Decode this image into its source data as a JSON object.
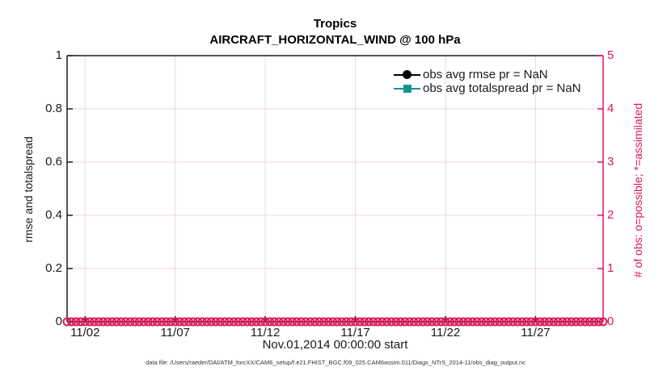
{
  "title": "Tropics",
  "subtitle": "AIRCRAFT_HORIZONTAL_WIND @ 100 hPa",
  "footer_note": "data file: /Users/raeder/DAI/ATM_forcXX/CAM6_setup/f.e21.FHIST_BGC.f09_025.CAM6assim.011/Diags_NTrS_2014-11/obs_diag_output.nc",
  "colors": {
    "obs_count_pink": "#DE175D",
    "totalspread_teal": "#179490",
    "rmse_black": "#000000",
    "grid_gray": "#E0E0E0",
    "grid_pink": "#F7D3DF",
    "axis_black": "#1a1a1a"
  },
  "chart_data": {
    "type": "line",
    "title": "Tropics",
    "subtitle": "AIRCRAFT_HORIZONTAL_WIND @ 100 hPa",
    "xlabel": "Nov.01,2014 00:00:00 start",
    "ylabel_left": "rmse and totalspread",
    "ylabel_right": "# of obs: o=possible; *=assimilated",
    "x_range_days": [
      0,
      29.75
    ],
    "x_tick_days": [
      1,
      6,
      11,
      16,
      21,
      26
    ],
    "x_tick_labels": [
      "11/02",
      "11/07",
      "11/12",
      "11/17",
      "11/22",
      "11/27"
    ],
    "ylim_left": [
      0,
      1
    ],
    "left_tick_labels": [
      "0",
      "0.2",
      "0.4",
      "0.6",
      "0.8",
      "1"
    ],
    "ylim_right": [
      0,
      5
    ],
    "right_tick_labels": [
      "0",
      "1",
      "2",
      "3",
      "4",
      "5"
    ],
    "grid": true,
    "legend_position": "upper-right inside, no box",
    "series": [
      {
        "name": "obs avg rmse pr = NaN",
        "in_legend": true,
        "axis": "left",
        "color": "#000000",
        "marker": "circle",
        "values": "all NaN - no curve drawn"
      },
      {
        "name": "obs avg totalspread pr = NaN",
        "in_legend": true,
        "axis": "left",
        "color": "#179490",
        "marker": "square",
        "values": "all NaN - no curve drawn"
      },
      {
        "name": "# of obs possible (o markers)",
        "in_legend": false,
        "axis": "right",
        "color": "#DE175D",
        "marker": "open-circle",
        "count": 120,
        "value_each": 0
      }
    ]
  }
}
